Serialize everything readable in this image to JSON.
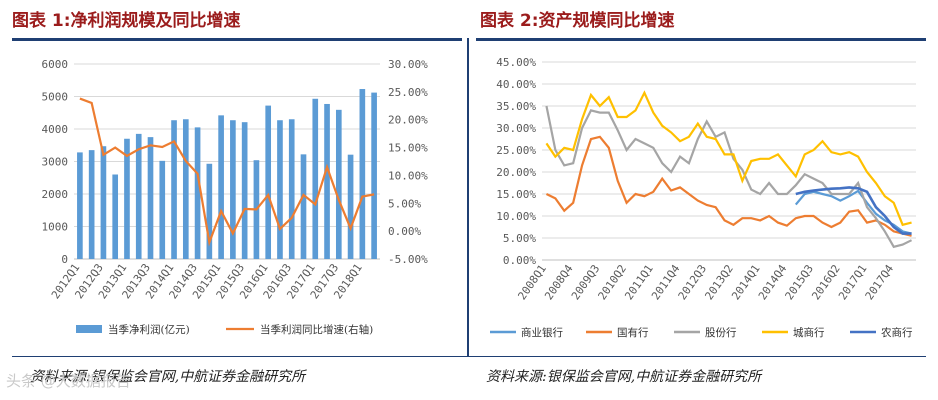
{
  "titles": {
    "left": "图表 1:净利润规模及同比增速",
    "right": "图表 2:资产规模同比增速"
  },
  "sources": {
    "left": "资料来源:银保监会官网,中航证券金融研究所",
    "right": "资料来源:银保监会官网,中航证券金融研究所"
  },
  "watermark": "头条 @大数据报告",
  "colors": {
    "profit_bar": "#5b9bd5",
    "profit_growth": "#ed7d31",
    "commercial": "#5b9bd5",
    "state_owned": "#ed7d31",
    "joint_stock": "#a5a5a5",
    "city": "#ffc000",
    "rural": "#4472c4"
  },
  "chart_data": [
    {
      "type": "bar",
      "title": "净利润规模及同比增速",
      "categories": [
        "2012Q1",
        "2012Q2",
        "2012Q3",
        "2012Q4",
        "2013Q1",
        "2013Q2",
        "2013Q3",
        "2013Q4",
        "2014Q1",
        "2014Q2",
        "2014Q3",
        "2014Q4",
        "2015Q1",
        "2015Q2",
        "2015Q3",
        "2015Q4",
        "2016Q1",
        "2016Q2",
        "2016Q3",
        "2016Q4",
        "2017Q1",
        "2017Q2",
        "2017Q3",
        "2017Q4",
        "2018Q1",
        "2018Q2"
      ],
      "x_tick_labels": [
        "2012Q1",
        "2012Q3",
        "2013Q1",
        "2013Q3",
        "2014Q1",
        "2014Q3",
        "2015Q1",
        "2015Q3",
        "2016Q1",
        "2016Q3",
        "2017Q1",
        "2017Q3",
        "2018Q1"
      ],
      "series": [
        {
          "name": "当季净利润(亿元)",
          "type": "bar",
          "axis": "left",
          "values": [
            3280,
            3350,
            3470,
            2600,
            3700,
            3850,
            3750,
            3020,
            4270,
            4300,
            4050,
            2930,
            4420,
            4270,
            4210,
            3040,
            4720,
            4270,
            4300,
            3220,
            4930,
            4770,
            4590,
            3210,
            5230,
            5120
          ]
        },
        {
          "name": "当季利润同比增速(右轴)",
          "type": "line",
          "axis": "right",
          "values": [
            23.8,
            23.0,
            13.7,
            15.0,
            13.5,
            14.7,
            15.4,
            15.1,
            16.1,
            12.6,
            10.3,
            -2.0,
            3.6,
            -0.4,
            4.0,
            3.9,
            6.5,
            0.4,
            2.4,
            6.5,
            4.8,
            11.5,
            5.6,
            0.5,
            6.2,
            6.6
          ]
        }
      ],
      "ylim": [
        0,
        6000
      ],
      "y_ticks": [
        "0",
        "1000",
        "2000",
        "3000",
        "4000",
        "5000",
        "6000"
      ],
      "y2lim": [
        -5,
        30
      ],
      "y2_ticks": [
        "-5.00%",
        "0.00%",
        "5.00%",
        "10.00%",
        "15.00%",
        "20.00%",
        "25.00%",
        "30.00%"
      ],
      "legend": {
        "position": "bottom",
        "items": [
          "当季净利润(亿元)",
          "当季利润同比增速(右轴)"
        ]
      },
      "grid": true
    },
    {
      "type": "line",
      "title": "资产规模同比增速",
      "categories": [
        "2008Q1",
        "2008Q2",
        "2008Q3",
        "2008Q4",
        "2009Q1",
        "2009Q2",
        "2009Q3",
        "2009Q4",
        "2010Q1",
        "2010Q2",
        "2010Q3",
        "2010Q4",
        "2011Q1",
        "2011Q2",
        "2011Q3",
        "2011Q4",
        "2012Q1",
        "2012Q2",
        "2012Q3",
        "2012Q4",
        "2013Q1",
        "2013Q2",
        "2013Q3",
        "2013Q4",
        "2014Q1",
        "2014Q2",
        "2014Q3",
        "2014Q4",
        "2015Q1",
        "2015Q2",
        "2015Q3",
        "2015Q4",
        "2016Q1",
        "2016Q2",
        "2016Q3",
        "2016Q4",
        "2017Q1",
        "2017Q2",
        "2017Q3",
        "2017Q4",
        "2018Q1",
        "2018Q2"
      ],
      "x_tick_labels": [
        "2008Q1",
        "2008Q4",
        "2009Q3",
        "2010Q2",
        "2011Q1",
        "2011Q4",
        "2012Q3",
        "2013Q2",
        "2014Q1",
        "2014Q4",
        "2015Q3",
        "2016Q2",
        "2017Q1",
        "2017Q4"
      ],
      "series": [
        {
          "name": "商业银行",
          "values": [
            null,
            null,
            null,
            null,
            null,
            null,
            null,
            null,
            null,
            null,
            null,
            null,
            null,
            null,
            null,
            null,
            null,
            null,
            null,
            null,
            null,
            null,
            null,
            null,
            null,
            null,
            null,
            null,
            12.6,
            15.0,
            15.5,
            15.0,
            14.5,
            13.5,
            14.5,
            15.7,
            13.0,
            10.5,
            9.0,
            8.0,
            6.5,
            6.0
          ]
        },
        {
          "name": "国有行",
          "values": [
            15.0,
            14.0,
            11.2,
            13.0,
            21.5,
            27.5,
            28.0,
            25.5,
            18.0,
            13.0,
            15.0,
            14.5,
            15.5,
            18.5,
            15.8,
            16.5,
            15.0,
            13.5,
            12.5,
            12.0,
            9.0,
            8.0,
            9.5,
            9.5,
            9.0,
            10.0,
            8.5,
            7.8,
            9.5,
            10.0,
            10.0,
            8.5,
            7.5,
            8.5,
            11.0,
            11.3,
            8.5,
            9.0,
            8.0,
            6.5,
            6.0,
            5.5
          ]
        },
        {
          "name": "股份行",
          "values": [
            35.0,
            25.0,
            21.5,
            22.0,
            30.0,
            34.0,
            33.5,
            33.5,
            29.5,
            25.0,
            27.5,
            26.5,
            25.5,
            22.0,
            20.0,
            23.5,
            22.0,
            27.5,
            31.5,
            28.0,
            29.0,
            23.0,
            20.5,
            16.0,
            15.0,
            17.5,
            15.0,
            15.0,
            17.0,
            19.5,
            18.5,
            17.5,
            15.0,
            15.0,
            15.0,
            17.5,
            12.0,
            9.5,
            6.5,
            3.0,
            3.5,
            4.5
          ]
        },
        {
          "name": "城商行",
          "values": [
            26.5,
            23.5,
            25.5,
            25.0,
            32.0,
            37.5,
            35.0,
            37.0,
            32.5,
            32.5,
            34.0,
            38.0,
            33.5,
            30.5,
            29.0,
            27.0,
            28.0,
            31.0,
            28.0,
            27.5,
            24.0,
            24.0,
            18.0,
            22.5,
            23.0,
            23.0,
            24.0,
            21.5,
            19.0,
            24.0,
            25.0,
            27.0,
            24.5,
            24.0,
            24.5,
            23.5,
            20.0,
            17.5,
            14.5,
            13.0,
            8.0,
            8.5
          ]
        },
        {
          "name": "农商行",
          "values": [
            null,
            null,
            null,
            null,
            null,
            null,
            null,
            null,
            null,
            null,
            null,
            null,
            null,
            null,
            null,
            null,
            null,
            null,
            null,
            null,
            null,
            null,
            null,
            null,
            null,
            null,
            null,
            null,
            15.0,
            15.5,
            15.8,
            16.0,
            16.2,
            16.3,
            16.5,
            16.3,
            15.5,
            12.0,
            10.0,
            7.5,
            6.0,
            6.0
          ]
        }
      ],
      "ylim": [
        0,
        45
      ],
      "y_ticks": [
        "0.00%",
        "5.00%",
        "10.00%",
        "15.00%",
        "20.00%",
        "25.00%",
        "30.00%",
        "35.00%",
        "40.00%",
        "45.00%"
      ],
      "legend": {
        "position": "bottom",
        "items": [
          "商业银行",
          "国有行",
          "股份行",
          "城商行",
          "农商行"
        ]
      },
      "grid": true
    }
  ]
}
